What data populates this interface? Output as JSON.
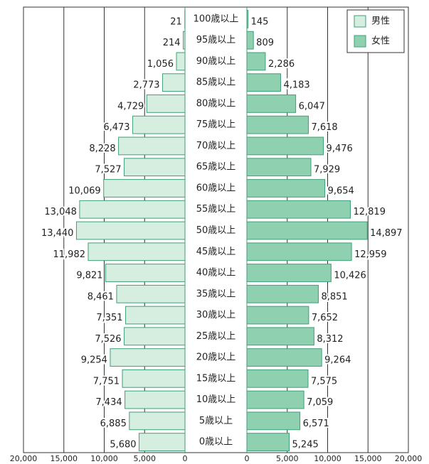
{
  "chart_data": {
    "type": "pyramid",
    "categories": [
      "100歳以上",
      "95歳以上",
      "90歳以上",
      "85歳以上",
      "80歳以上",
      "75歳以上",
      "70歳以上",
      "65歳以上",
      "60歳以上",
      "55歳以上",
      "50歳以上",
      "45歳以上",
      "40歳以上",
      "35歳以上",
      "30歳以上",
      "25歳以上",
      "20歳以上",
      "15歳以上",
      "10歳以上",
      "5歳以上",
      "0歳以上"
    ],
    "series": [
      {
        "name": "男性",
        "color": "#d6eedf",
        "values": [
          21,
          214,
          1056,
          2773,
          4729,
          6473,
          8228,
          7527,
          10069,
          13048,
          13440,
          11982,
          9821,
          8461,
          7351,
          7526,
          9254,
          7751,
          7434,
          6885,
          5680
        ],
        "value_labels": [
          "21",
          "214",
          "1,056",
          "2,773",
          "4,729",
          "6,473",
          "8,228",
          "7,527",
          "10,069",
          "13,048",
          "13,440",
          "11,982",
          "9,821",
          "8,461",
          "7,351",
          "7,526",
          "9,254",
          "7,751",
          "7,434",
          "6,885",
          "5,680"
        ]
      },
      {
        "name": "女性",
        "color": "#8fd0b1",
        "values": [
          145,
          809,
          2286,
          4183,
          6047,
          7618,
          9476,
          7929,
          9654,
          12819,
          14897,
          12959,
          10426,
          8851,
          7652,
          8312,
          9264,
          7575,
          7059,
          6571,
          5245
        ],
        "value_labels": [
          "145",
          "809",
          "2,286",
          "4,183",
          "6,047",
          "7,618",
          "9,476",
          "7,929",
          "9,654",
          "12,819",
          "14,897",
          "12,959",
          "10,426",
          "8,851",
          "7,652",
          "8,312",
          "9,264",
          "7,575",
          "7,059",
          "6,571",
          "5,245"
        ]
      }
    ],
    "xlim": [
      0,
      20000
    ],
    "xticks": [
      0,
      {
        "value": 5000,
        "label": "5,000"
      },
      {
        "value": 10000,
        "label": "10,000"
      },
      {
        "value": 15000,
        "label": "15,000"
      },
      {
        "value": 20000,
        "label": "20,000"
      }
    ],
    "grid": true,
    "legend": "top-right"
  }
}
